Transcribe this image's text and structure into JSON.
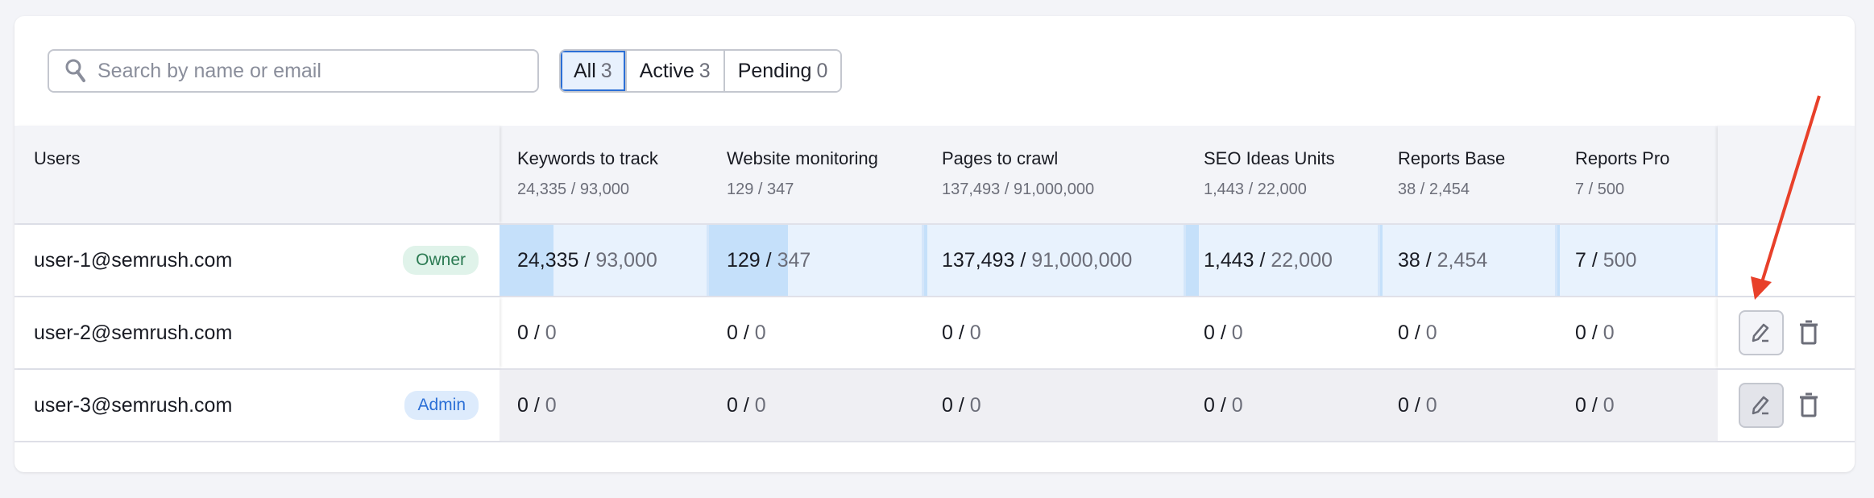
{
  "search": {
    "placeholder": "Search by name or email",
    "icon": "search-icon"
  },
  "filters": [
    {
      "label": "All",
      "count": "3",
      "active": true
    },
    {
      "label": "Active",
      "count": "3"
    },
    {
      "label": "Pending",
      "count": "0"
    }
  ],
  "table": {
    "users_header": "Users",
    "columns": [
      {
        "title": "Keywords to track",
        "used": "24,335",
        "limit": "93,000",
        "sub": "24,335 / 93,000"
      },
      {
        "title": "Website monitoring",
        "used": "129",
        "limit": "347",
        "sub": "129 / 347"
      },
      {
        "title": "Pages to crawl",
        "used": "137,493",
        "limit": "91,000,000",
        "sub": "137,493 / 91,000,000"
      },
      {
        "title": "SEO Ideas Units",
        "used": "1,443",
        "limit": "22,000",
        "sub": "1,443 / 22,000"
      },
      {
        "title": "Reports Base",
        "used": "38",
        "limit": "2,454",
        "sub": "38 / 2,454"
      },
      {
        "title": "Reports Pro",
        "used": "7",
        "limit": "500",
        "sub": "7 / 500"
      }
    ],
    "rows": [
      {
        "email": "user-1@semrush.com",
        "badge": "Owner",
        "cells": [
          {
            "used": "24,335",
            "limit": "93,000",
            "fill": 0.262
          },
          {
            "used": "129",
            "limit": "347",
            "fill": 0.372
          },
          {
            "used": "137,493",
            "limit": "91,000,000",
            "fill": 0.0015
          },
          {
            "used": "1,443",
            "limit": "22,000",
            "fill": 0.066
          },
          {
            "used": "38",
            "limit": "2,454",
            "fill": 0.015
          },
          {
            "used": "7",
            "limit": "500",
            "fill": 0.014
          }
        ],
        "actions": false
      },
      {
        "email": "user-2@semrush.com",
        "badge": "",
        "cells": [
          {
            "used": "0",
            "limit": "0"
          },
          {
            "used": "0",
            "limit": "0"
          },
          {
            "used": "0",
            "limit": "0"
          },
          {
            "used": "0",
            "limit": "0"
          },
          {
            "used": "0",
            "limit": "0"
          },
          {
            "used": "0",
            "limit": "0"
          }
        ],
        "actions": true
      },
      {
        "email": "user-3@semrush.com",
        "badge": "Admin",
        "cells": [
          {
            "used": "0",
            "limit": "0"
          },
          {
            "used": "0",
            "limit": "0"
          },
          {
            "used": "0",
            "limit": "0"
          },
          {
            "used": "0",
            "limit": "0"
          },
          {
            "used": "0",
            "limit": "0"
          },
          {
            "used": "0",
            "limit": "0"
          }
        ],
        "actions": true
      }
    ]
  },
  "colors": {
    "accent": "#2b6fd6",
    "usage_fill": "#c5e0fa",
    "usage_bg": "#e8f2fd",
    "annotation_arrow": "#e8402a"
  }
}
